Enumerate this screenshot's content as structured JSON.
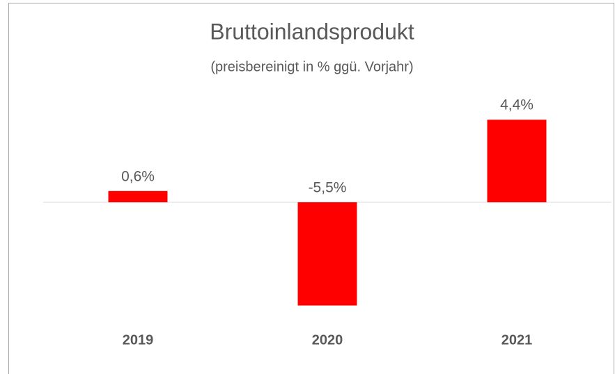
{
  "chart_data": {
    "type": "bar",
    "title": "Bruttoinlandsprodukt",
    "subtitle": "(preisbereinigt in % ggü. Vorjahr)",
    "categories": [
      "2019",
      "2020",
      "2021"
    ],
    "values": [
      0.6,
      -5.5,
      4.4
    ],
    "value_labels": [
      "0,6%",
      "-5,5%",
      "4,4%"
    ],
    "color": "#ff0000",
    "ylim": [
      -6,
      5
    ]
  }
}
